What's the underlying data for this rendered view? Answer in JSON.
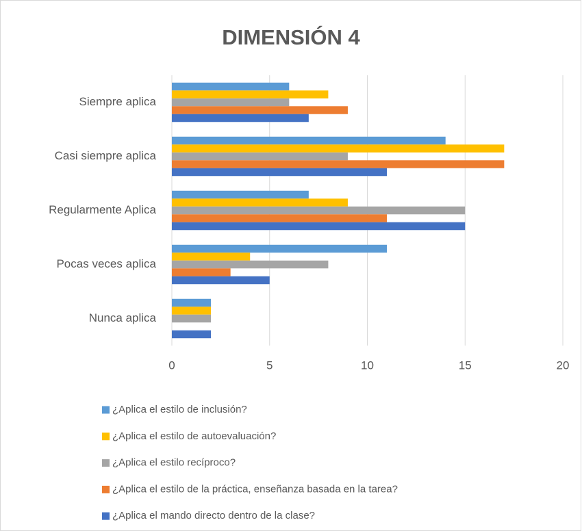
{
  "chart_data": {
    "type": "hbar",
    "title": "DIMENSIÓN 4",
    "categories": [
      "Siempre aplica",
      "Casi siempre aplica",
      "Regularmente Aplica",
      "Pocas veces aplica",
      "Nunca aplica"
    ],
    "series": [
      {
        "name": "¿Aplica el estilo de inclusión?",
        "color": "#5b9bd5",
        "values": [
          6,
          14,
          7,
          11,
          2
        ]
      },
      {
        "name": "¿Aplica el estilo de autoevaluación?",
        "color": "#ffc000",
        "values": [
          8,
          17,
          9,
          4,
          2
        ]
      },
      {
        "name": "¿Aplica el estilo recíproco?",
        "color": "#a5a5a5",
        "values": [
          6,
          9,
          15,
          8,
          2
        ]
      },
      {
        "name": "¿Aplica el estilo de la práctica, enseñanza basada en la tarea?",
        "color": "#ed7d31",
        "values": [
          9,
          17,
          11,
          3,
          0
        ]
      },
      {
        "name": "¿Aplica el mando directo dentro de la clase?",
        "color": "#4472c4",
        "values": [
          7,
          11,
          15,
          5,
          2
        ]
      }
    ],
    "xlim": [
      0,
      20
    ],
    "xticks": [
      0,
      5,
      10,
      15,
      20
    ],
    "grid": true,
    "legend": "bottom"
  }
}
